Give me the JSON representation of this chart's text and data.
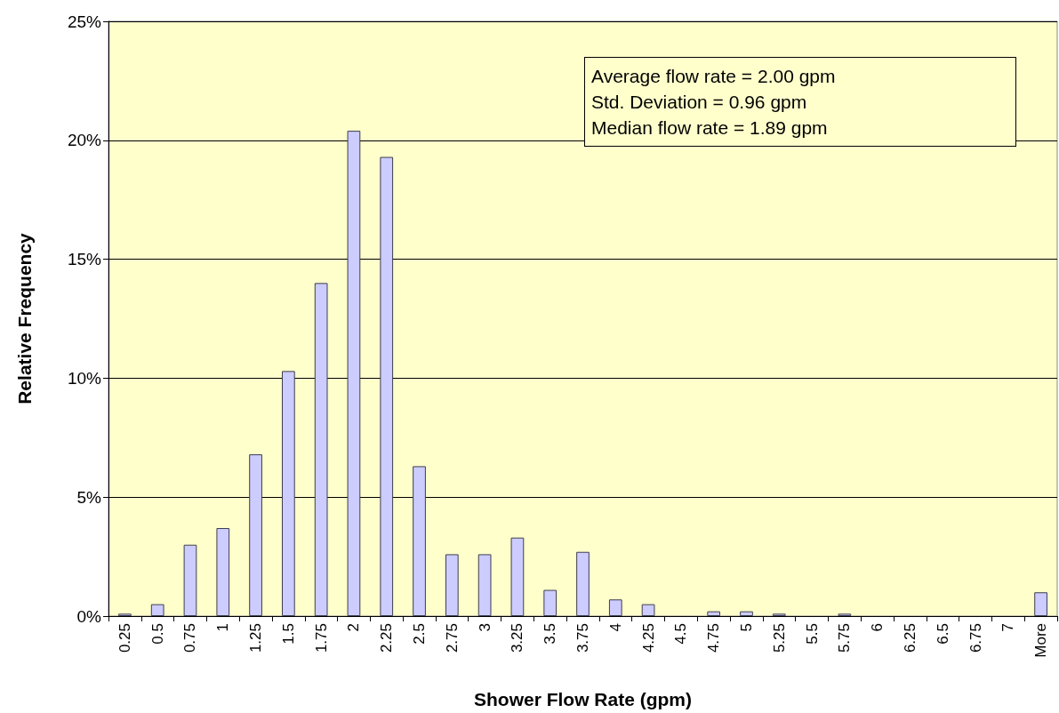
{
  "chart_data": {
    "type": "bar",
    "xlabel": "Shower Flow Rate (gpm)",
    "ylabel": "Relative Frequency",
    "categories": [
      "0.25",
      "0.5",
      "0.75",
      "1",
      "1.25",
      "1.5",
      "1.75",
      "2",
      "2.25",
      "2.5",
      "2.75",
      "3",
      "3.25",
      "3.5",
      "3.75",
      "4",
      "4.25",
      "4.5",
      "4.75",
      "5",
      "5.25",
      "5.5",
      "5.75",
      "6",
      "6.25",
      "6.5",
      "6.75",
      "7",
      "More"
    ],
    "values": [
      0.1,
      0.5,
      3.0,
      3.7,
      6.8,
      10.3,
      14.0,
      20.4,
      19.3,
      6.3,
      2.6,
      2.6,
      3.3,
      1.1,
      2.7,
      0.7,
      0.5,
      0,
      0.2,
      0.2,
      0.1,
      0,
      0.1,
      0,
      0,
      0,
      0,
      0,
      1.0
    ],
    "color": "#ccccff",
    "ylim": [
      0,
      25
    ],
    "yticks": [
      {
        "value": 0,
        "label": "0%"
      },
      {
        "value": 5,
        "label": "5%"
      },
      {
        "value": 10,
        "label": "10%"
      },
      {
        "value": 15,
        "label": "15%"
      },
      {
        "value": 20,
        "label": "20%"
      },
      {
        "value": 25,
        "label": "25%"
      }
    ],
    "grid": "y",
    "annotations": [
      "Average flow rate = 2.00 gpm",
      "Std. Deviation = 0.96 gpm",
      "Median flow rate = 1.89 gpm"
    ]
  }
}
